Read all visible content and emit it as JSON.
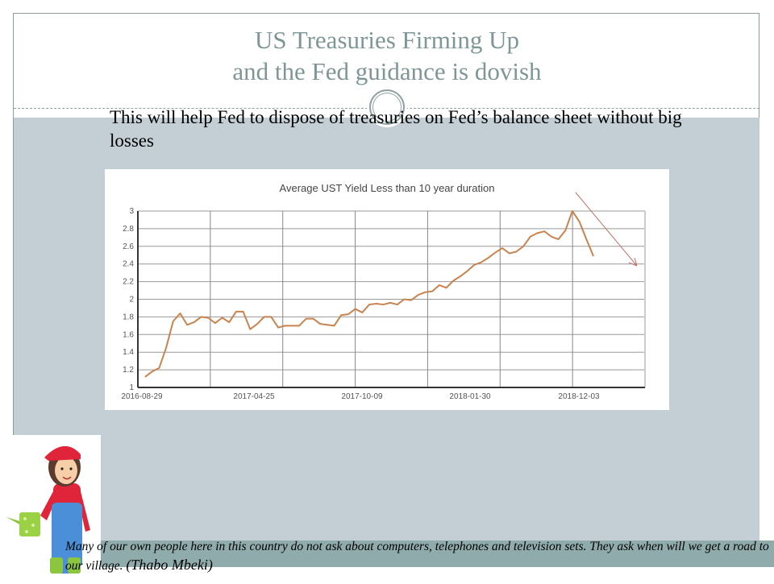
{
  "slide": {
    "title_line1": "US Treasuries Firming Up",
    "title_line2": "and the Fed guidance is dovish",
    "subtitle": "This will help  Fed to dispose of treasuries on Fed’s balance sheet without big losses",
    "quote": "Many of our own people here in this country do not ask about computers, telephones and television sets. They ask when will we get a road to our village.",
    "quote_author": "(Thabo Mbeki)"
  },
  "colors": {
    "line": "#c8834f",
    "arrow": "#c0706a",
    "title": "#7f9696",
    "band": "#c4cfd5",
    "footer": "#8fabab"
  },
  "chart_data": {
    "type": "line",
    "title": "Average UST Yield Less than 10 year duration",
    "xlabel": "",
    "ylabel": "",
    "ylim": [
      1,
      3
    ],
    "yticks": [
      1,
      1.2,
      1.4,
      1.6,
      1.8,
      2,
      2.2,
      2.4,
      2.6,
      2.8,
      3
    ],
    "xtick_labels": [
      "2016-08-29",
      "2017-04-25",
      "2017-10-09",
      "2018-01-30",
      "2018-12-03"
    ],
    "grid": true,
    "annotation": "downward trend arrow",
    "series": [
      {
        "name": "Average UST Yield",
        "values": [
          1.12,
          1.18,
          1.22,
          1.45,
          1.75,
          1.84,
          1.71,
          1.74,
          1.8,
          1.79,
          1.73,
          1.79,
          1.74,
          1.86,
          1.86,
          1.66,
          1.72,
          1.8,
          1.8,
          1.68,
          1.7,
          1.7,
          1.7,
          1.78,
          1.78,
          1.72,
          1.71,
          1.7,
          1.82,
          1.83,
          1.89,
          1.85,
          1.94,
          1.95,
          1.94,
          1.96,
          1.94,
          2.0,
          1.99,
          2.05,
          2.08,
          2.09,
          2.16,
          2.13,
          2.21,
          2.26,
          2.32,
          2.39,
          2.42,
          2.47,
          2.53,
          2.58,
          2.52,
          2.54,
          2.6,
          2.71,
          2.75,
          2.77,
          2.71,
          2.68,
          2.78,
          3.0,
          2.88,
          2.68,
          2.49
        ]
      }
    ]
  }
}
